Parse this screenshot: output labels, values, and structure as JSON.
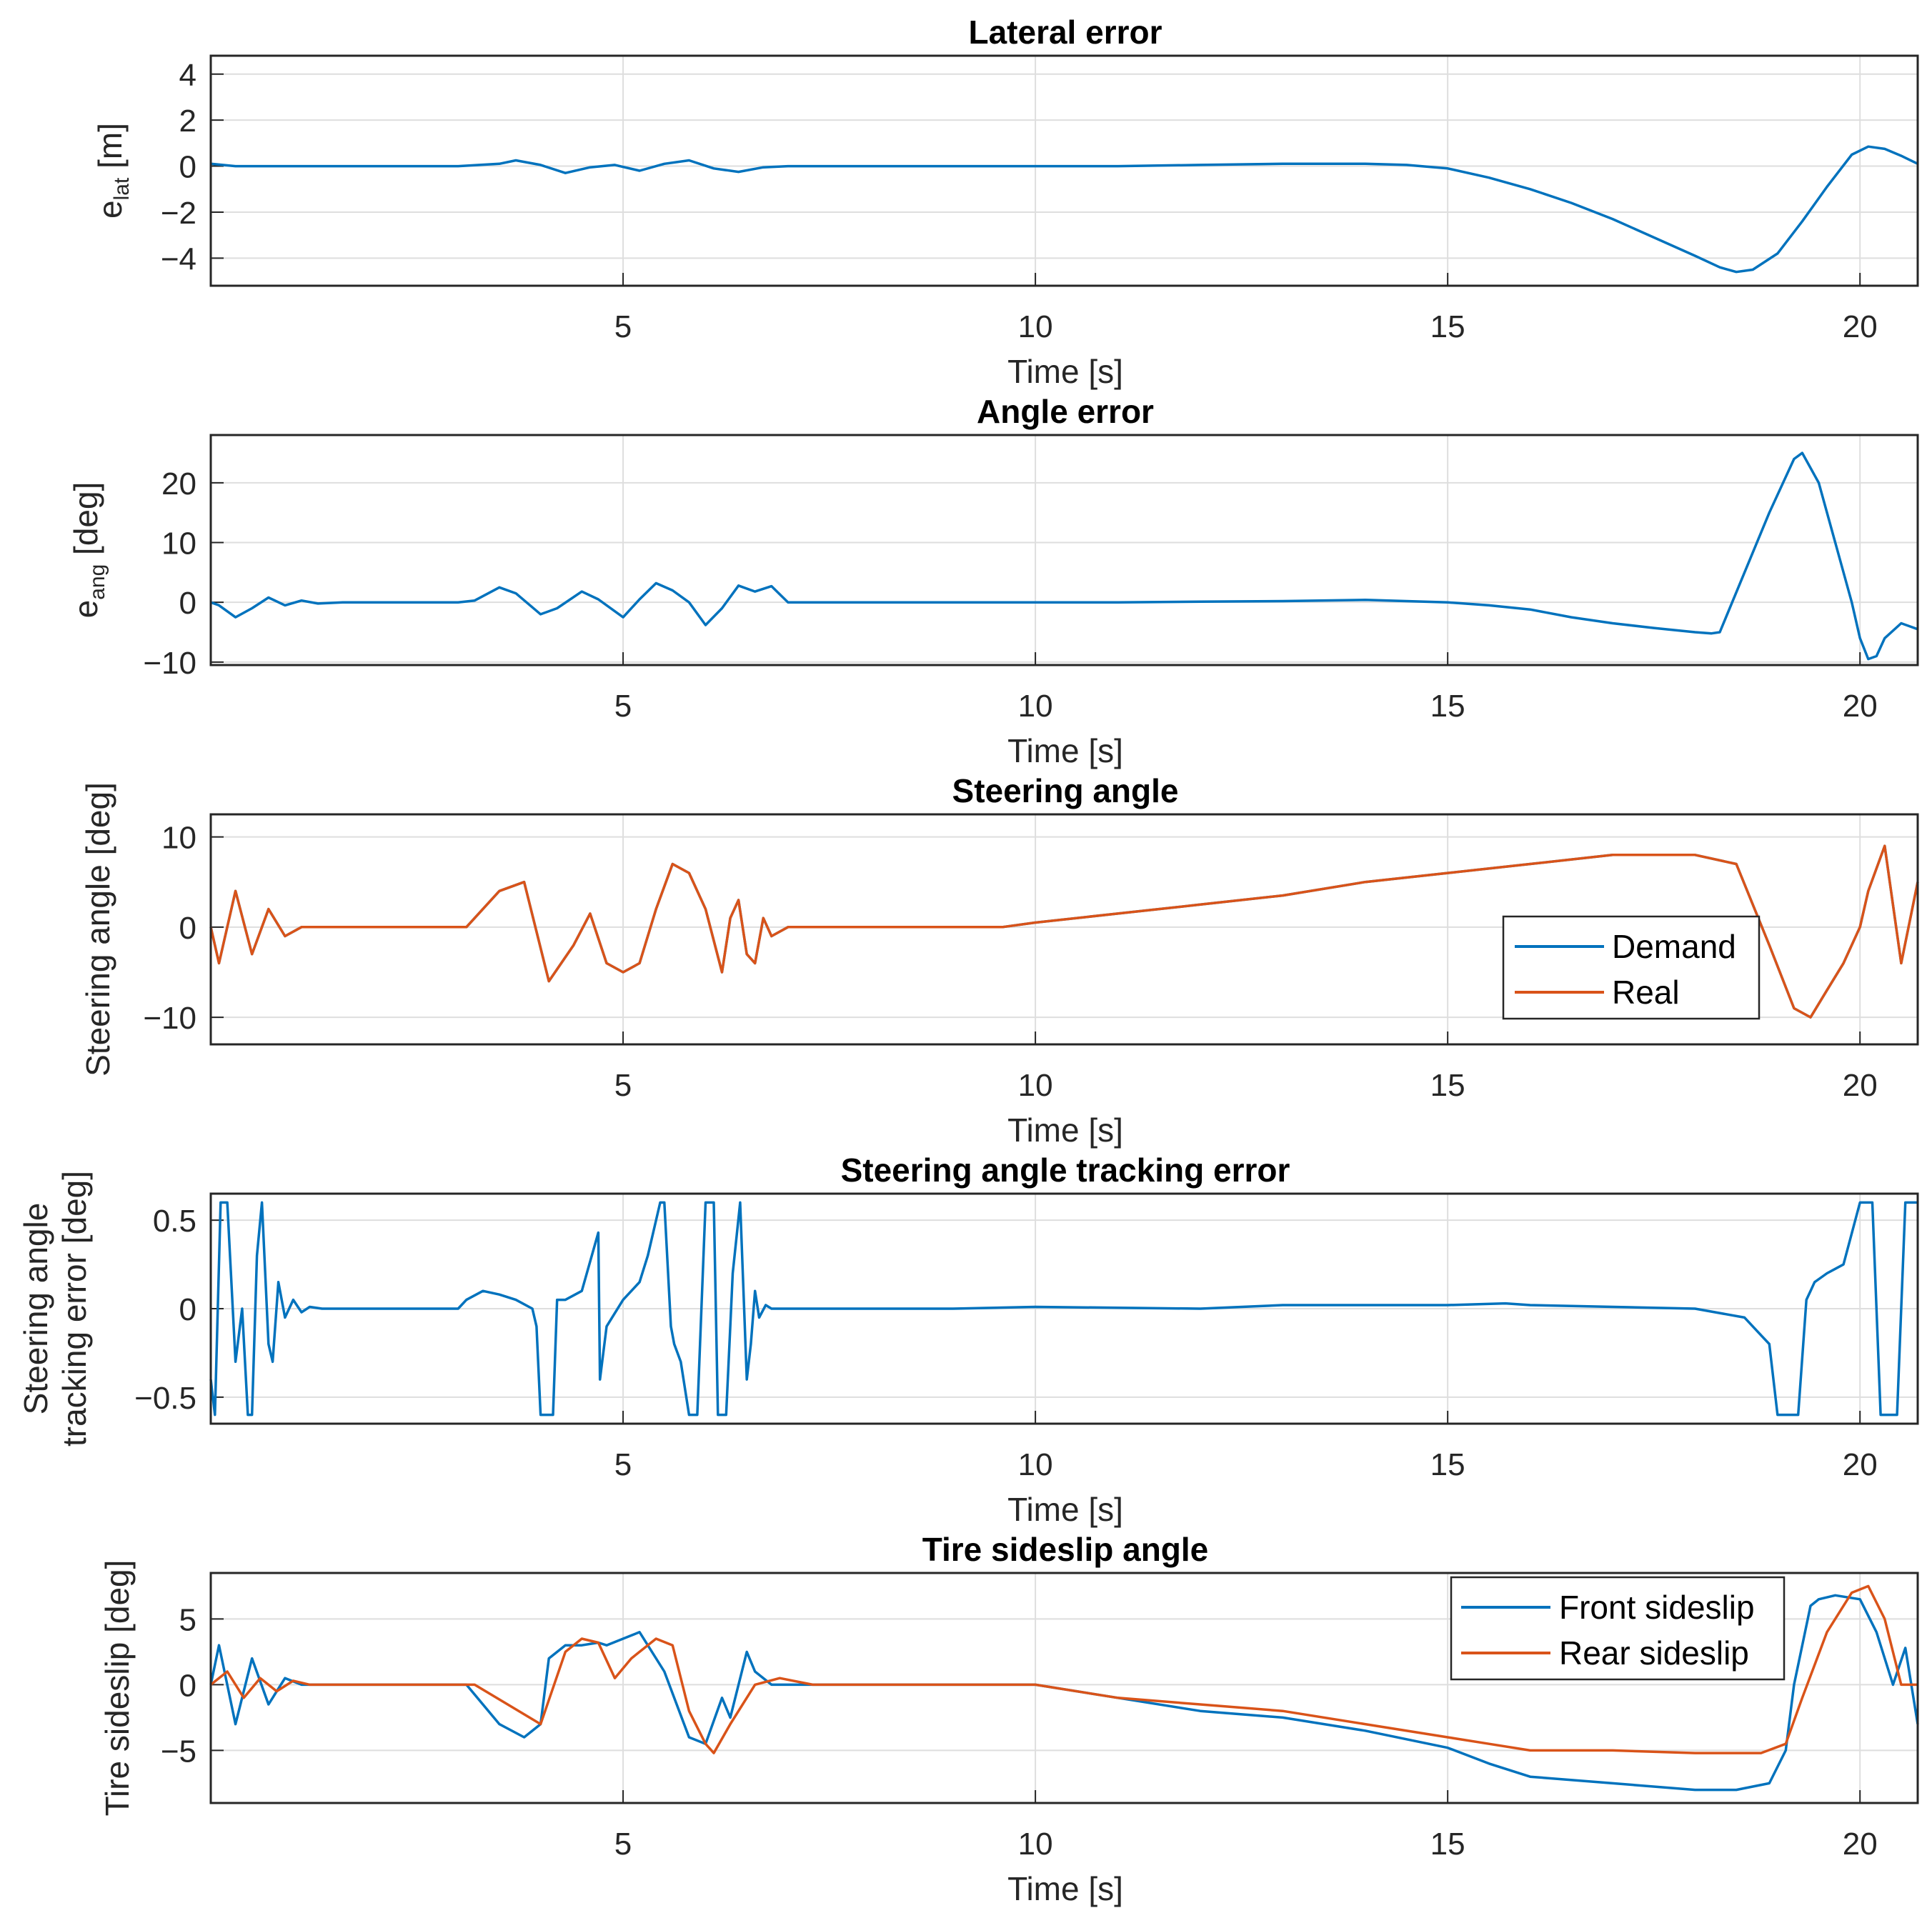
{
  "chart_data": [
    {
      "type": "line",
      "title": "Lateral error",
      "xlabel": "Time [s]",
      "ylabel": {
        "base": "e",
        "sub": "lat",
        "suffix": " [m]"
      },
      "xlim": [
        0,
        20.7
      ],
      "ylim": [
        -5.2,
        4.8
      ],
      "xticks": [
        5,
        10,
        15,
        20
      ],
      "yticks": [
        -4,
        -2,
        0,
        2,
        4
      ],
      "ytick_labels": [
        "−4",
        "−2",
        "0",
        "2",
        "4"
      ],
      "grid": true,
      "legend": null,
      "series": [
        {
          "name": "e_lat",
          "color": "#0072BD",
          "x": [
            0,
            0.3,
            1,
            2,
            3,
            3.5,
            3.7,
            4,
            4.3,
            4.6,
            4.9,
            5.2,
            5.5,
            5.8,
            6.1,
            6.4,
            6.7,
            7,
            8,
            9,
            10,
            11,
            12,
            13,
            14,
            14.5,
            15,
            15.5,
            16,
            16.5,
            17,
            17.5,
            18,
            18.3,
            18.5,
            18.7,
            19,
            19.3,
            19.6,
            19.9,
            20.1,
            20.3,
            20.5,
            20.7
          ],
          "y": [
            0.1,
            0,
            0,
            0,
            0,
            0.1,
            0.25,
            0.05,
            -0.3,
            -0.05,
            0.05,
            -0.2,
            0.1,
            0.25,
            -0.1,
            -0.25,
            -0.05,
            0,
            0,
            0,
            0,
            0,
            0.05,
            0.1,
            0.1,
            0.05,
            -0.1,
            -0.5,
            -1.0,
            -1.6,
            -2.3,
            -3.1,
            -3.9,
            -4.4,
            -4.6,
            -4.5,
            -3.8,
            -2.4,
            -0.9,
            0.5,
            0.85,
            0.75,
            0.45,
            0.1
          ]
        }
      ]
    },
    {
      "type": "line",
      "title": "Angle error",
      "xlabel": "Time [s]",
      "ylabel": {
        "base": "e",
        "sub": "ang",
        "suffix": " [deg]"
      },
      "xlim": [
        0,
        20.7
      ],
      "ylim": [
        -10.5,
        28
      ],
      "xticks": [
        5,
        10,
        15,
        20
      ],
      "yticks": [
        -10,
        0,
        10,
        20
      ],
      "ytick_labels": [
        "−10",
        "0",
        "10",
        "20"
      ],
      "grid": true,
      "legend": null,
      "series": [
        {
          "name": "e_ang",
          "color": "#0072BD",
          "x": [
            0,
            0.1,
            0.3,
            0.5,
            0.7,
            0.9,
            1.1,
            1.3,
            1.6,
            2,
            3,
            3.2,
            3.5,
            3.7,
            4,
            4.2,
            4.5,
            4.7,
            5,
            5.2,
            5.4,
            5.6,
            5.8,
            6,
            6.2,
            6.4,
            6.6,
            6.8,
            7,
            7.3,
            8,
            9,
            10,
            11,
            12,
            13,
            14,
            15,
            15.5,
            16,
            16.5,
            17,
            17.5,
            18,
            18.2,
            18.3,
            18.6,
            18.9,
            19.2,
            19.3,
            19.5,
            19.7,
            19.9,
            20,
            20.1,
            20.2,
            20.3,
            20.5,
            20.7
          ],
          "y": [
            0,
            -0.5,
            -2.5,
            -1,
            0.8,
            -0.5,
            0.3,
            -0.2,
            0,
            0,
            0,
            0.3,
            2.5,
            1.5,
            -2,
            -1,
            1.8,
            0.5,
            -2.5,
            0.5,
            3.2,
            2,
            0,
            -3.8,
            -1,
            2.8,
            1.8,
            2.7,
            0,
            0,
            0,
            0,
            0,
            0,
            0.1,
            0.2,
            0.4,
            0,
            -0.5,
            -1.2,
            -2.5,
            -3.5,
            -4.3,
            -5,
            -5.2,
            -5,
            5,
            15,
            24,
            25,
            20,
            10,
            0,
            -6,
            -9.5,
            -9,
            -6,
            -3.5,
            -4.5
          ]
        }
      ]
    },
    {
      "type": "line",
      "title": "Steering angle",
      "xlabel": "Time [s]",
      "ylabel": {
        "base": "Steering angle [deg]"
      },
      "xlim": [
        0,
        20.7
      ],
      "ylim": [
        -13,
        12.5
      ],
      "xticks": [
        5,
        10,
        15,
        20
      ],
      "yticks": [
        -10,
        0,
        10
      ],
      "ytick_labels": [
        "−10",
        "0",
        "10"
      ],
      "grid": true,
      "legend": {
        "position": "lower-right",
        "entries": [
          "Demand",
          "Real"
        ]
      },
      "series": [
        {
          "name": "Demand",
          "color": "#0072BD",
          "x": [
            0,
            0.1,
            0.3,
            0.5,
            0.7,
            0.9,
            1.1,
            1.3,
            1.5,
            1.7,
            2,
            3,
            3.1,
            3.5,
            3.8,
            4.1,
            4.4,
            4.6,
            4.8,
            5,
            5.2,
            5.4,
            5.6,
            5.8,
            6,
            6.2,
            6.3,
            6.4,
            6.5,
            6.6,
            6.7,
            6.8,
            7,
            7.3,
            8,
            9,
            9.6,
            10,
            11,
            12,
            13,
            14,
            15,
            16,
            17,
            18,
            18.5,
            18.9,
            19.2,
            19.4,
            19.6,
            19.8,
            20,
            20.1,
            20.3,
            20.5,
            20.7
          ],
          "y": [
            0,
            -4,
            4,
            -3,
            2,
            -1,
            0,
            0,
            0,
            0,
            0,
            0,
            0,
            4,
            5,
            -6,
            -2,
            1.5,
            -4,
            -5,
            -4,
            2,
            7,
            6,
            2,
            -5,
            1,
            3,
            -3,
            -4,
            1,
            -1,
            0,
            0,
            0,
            0,
            0,
            0.5,
            1.5,
            2.5,
            3.5,
            5,
            6,
            7,
            8,
            8,
            7,
            -2,
            -9,
            -10,
            -7,
            -4,
            0,
            4,
            9,
            -4,
            5
          ]
        },
        {
          "name": "Real",
          "color": "#D95319",
          "x": [
            0,
            0.1,
            0.3,
            0.5,
            0.7,
            0.9,
            1.1,
            1.3,
            1.5,
            1.7,
            2,
            3,
            3.1,
            3.5,
            3.8,
            4.1,
            4.4,
            4.6,
            4.8,
            5,
            5.2,
            5.4,
            5.6,
            5.8,
            6,
            6.2,
            6.3,
            6.4,
            6.5,
            6.6,
            6.7,
            6.8,
            7,
            7.3,
            8,
            9,
            9.6,
            10,
            11,
            12,
            13,
            14,
            15,
            16,
            17,
            18,
            18.5,
            18.9,
            19.2,
            19.4,
            19.6,
            19.8,
            20,
            20.1,
            20.3,
            20.5,
            20.7
          ],
          "y": [
            0,
            -4,
            4,
            -3,
            2,
            -1,
            0,
            0,
            0,
            0,
            0,
            0,
            0,
            4,
            5,
            -6,
            -2,
            1.5,
            -4,
            -5,
            -4,
            2,
            7,
            6,
            2,
            -5,
            1,
            3,
            -3,
            -4,
            1,
            -1,
            0,
            0,
            0,
            0,
            0,
            0.5,
            1.5,
            2.5,
            3.5,
            5,
            6,
            7,
            8,
            8,
            7,
            -2,
            -9,
            -10,
            -7,
            -4,
            0,
            4,
            9,
            -4,
            5
          ]
        }
      ]
    },
    {
      "type": "line",
      "title": "Steering angle tracking error",
      "xlabel": "Time [s]",
      "ylabel": {
        "base": "Steering angle",
        "line2": "tracking error [deg]"
      },
      "xlim": [
        0,
        20.7
      ],
      "ylim": [
        -0.65,
        0.65
      ],
      "xticks": [
        5,
        10,
        15,
        20
      ],
      "yticks": [
        -0.5,
        0,
        0.5
      ],
      "ytick_labels": [
        "−0.5",
        "0",
        "0.5"
      ],
      "grid": true,
      "legend": null,
      "series": [
        {
          "name": "tracking error",
          "color": "#0072BD",
          "x": [
            0,
            0.05,
            0.12,
            0.2,
            0.3,
            0.38,
            0.45,
            0.5,
            0.56,
            0.62,
            0.7,
            0.75,
            0.82,
            0.9,
            1,
            1.1,
            1.2,
            1.35,
            1.5,
            1.8,
            3,
            3.1,
            3.3,
            3.5,
            3.7,
            3.9,
            3.95,
            4,
            4.05,
            4.15,
            4.2,
            4.3,
            4.5,
            4.7,
            4.72,
            4.8,
            5,
            5.2,
            5.3,
            5.45,
            5.5,
            5.58,
            5.62,
            5.7,
            5.8,
            5.9,
            6,
            6.05,
            6.1,
            6.15,
            6.25,
            6.3,
            6.33,
            6.42,
            6.5,
            6.55,
            6.6,
            6.65,
            6.73,
            6.8,
            6.9,
            7,
            7.1,
            7.3,
            7.5,
            9,
            10,
            12,
            13,
            14,
            15,
            15.7,
            16,
            18,
            18.6,
            18.8,
            18.9,
            19,
            19.1,
            19.25,
            19.35,
            19.4,
            19.45,
            19.6,
            19.8,
            20,
            20.05,
            20.15,
            20.25,
            20.4,
            20.45,
            20.55,
            20.6,
            20.65,
            20.7
          ],
          "y": [
            -0.4,
            -0.6,
            0.6,
            0.6,
            -0.3,
            0,
            -0.6,
            -0.6,
            0.3,
            0.6,
            -0.2,
            -0.3,
            0.15,
            -0.05,
            0.05,
            -0.02,
            0.01,
            0,
            0,
            0,
            0,
            0.05,
            0.1,
            0.08,
            0.05,
            0,
            -0.1,
            -0.6,
            -0.6,
            -0.6,
            0.05,
            0.05,
            0.1,
            0.43,
            -0.4,
            -0.1,
            0.05,
            0.15,
            0.3,
            0.6,
            0.6,
            -0.1,
            -0.2,
            -0.3,
            -0.6,
            -0.6,
            0.6,
            0.6,
            0.6,
            -0.6,
            -0.6,
            -0.1,
            0.2,
            0.6,
            -0.4,
            -0.2,
            0.1,
            -0.05,
            0.02,
            0,
            0,
            0,
            0,
            0,
            0,
            0,
            0.01,
            0,
            0.02,
            0.02,
            0.02,
            0.03,
            0.02,
            0,
            -0.05,
            -0.15,
            -0.2,
            -0.6,
            -0.6,
            -0.6,
            0.05,
            0.1,
            0.15,
            0.2,
            0.25,
            0.6,
            0.6,
            0.6,
            -0.6,
            -0.6,
            -0.6,
            0.6,
            0.6,
            0.6,
            0.6
          ]
        }
      ]
    },
    {
      "type": "line",
      "title": "Tire sideslip angle",
      "xlabel": "Time [s]",
      "ylabel": {
        "base": "Tire sideslip [deg]"
      },
      "xlim": [
        0,
        20.7
      ],
      "ylim": [
        -9,
        8.5
      ],
      "xticks": [
        5,
        10,
        15,
        20
      ],
      "yticks": [
        -5,
        0,
        5
      ],
      "ytick_labels": [
        "−5",
        "0",
        "5"
      ],
      "grid": true,
      "legend": {
        "position": "upper-right",
        "entries": [
          "Front sideslip",
          "Rear sideslip"
        ]
      },
      "series": [
        {
          "name": "Front sideslip",
          "color": "#0072BD",
          "x": [
            0,
            0.1,
            0.3,
            0.5,
            0.7,
            0.9,
            1.1,
            1.3,
            1.5,
            1.7,
            2,
            3,
            3.1,
            3.5,
            3.8,
            4,
            4.1,
            4.3,
            4.5,
            4.7,
            4.8,
            5,
            5.2,
            5.5,
            5.8,
            6,
            6.2,
            6.3,
            6.5,
            6.6,
            6.8,
            7,
            7.3,
            8,
            9,
            10,
            11,
            12,
            13,
            14,
            15,
            15.5,
            16,
            17,
            18,
            18.5,
            18.9,
            19.1,
            19.2,
            19.4,
            19.5,
            19.7,
            20,
            20.2,
            20.4,
            20.55,
            20.7
          ],
          "y": [
            0,
            3,
            -3,
            2,
            -1.5,
            0.5,
            0,
            0,
            0,
            0,
            0,
            0,
            0,
            -3,
            -4,
            -3,
            2,
            3,
            3,
            3.2,
            3,
            3.5,
            4,
            1,
            -4,
            -4.5,
            -1,
            -2.5,
            2.5,
            1,
            0,
            0,
            0,
            0,
            0,
            0,
            -1,
            -2,
            -2.5,
            -3.5,
            -4.8,
            -6,
            -7,
            -7.5,
            -8,
            -8,
            -7.5,
            -5,
            0,
            6,
            6.5,
            6.8,
            6.5,
            4,
            0,
            2.8,
            -3
          ]
        },
        {
          "name": "Rear sideslip",
          "color": "#D95319",
          "x": [
            0,
            0.2,
            0.4,
            0.6,
            0.8,
            1,
            1.2,
            1.5,
            2,
            3,
            3.2,
            3.6,
            4,
            4.3,
            4.5,
            4.7,
            4.9,
            5.1,
            5.4,
            5.6,
            5.8,
            6,
            6.1,
            6.3,
            6.6,
            6.9,
            7.3,
            8,
            9,
            10,
            11,
            12,
            13,
            14,
            15,
            15.5,
            16,
            17,
            18,
            18.8,
            19.1,
            19.3,
            19.6,
            19.9,
            20.1,
            20.3,
            20.5,
            20.7
          ],
          "y": [
            0,
            1,
            -1,
            0.5,
            -0.5,
            0.3,
            0,
            0,
            0,
            0,
            0,
            -1.5,
            -3,
            2.5,
            3.5,
            3.2,
            0.5,
            2,
            3.5,
            3,
            -2,
            -4.5,
            -5.2,
            -3,
            0,
            0.5,
            0,
            0,
            0,
            0,
            -1,
            -1.5,
            -2,
            -3,
            -4,
            -4.5,
            -5,
            -5,
            -5.2,
            -5.2,
            -4.5,
            -1,
            4,
            7,
            7.5,
            5,
            0,
            0
          ]
        }
      ]
    }
  ]
}
